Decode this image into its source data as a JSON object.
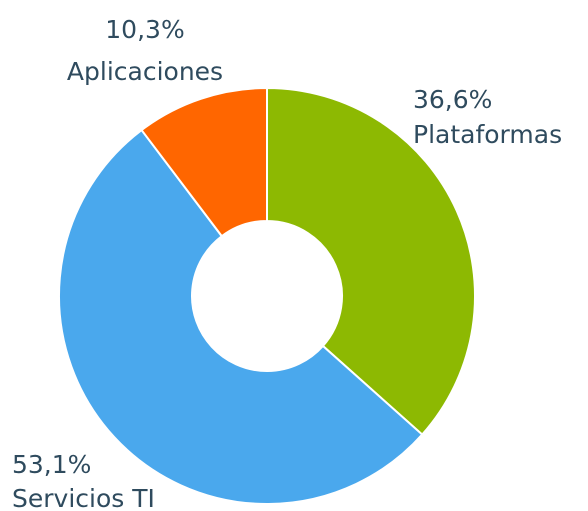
{
  "chart_data": {
    "type": "donut",
    "categories": [
      "Plataformas",
      "Servicios TI",
      "Aplicaciones"
    ],
    "values": [
      36.6,
      53.1,
      10.3
    ],
    "value_labels": [
      "36,6%",
      "53,1%",
      "10,3%"
    ],
    "colors": [
      "#8db902",
      "#4aa8ed",
      "#ff6600"
    ]
  }
}
